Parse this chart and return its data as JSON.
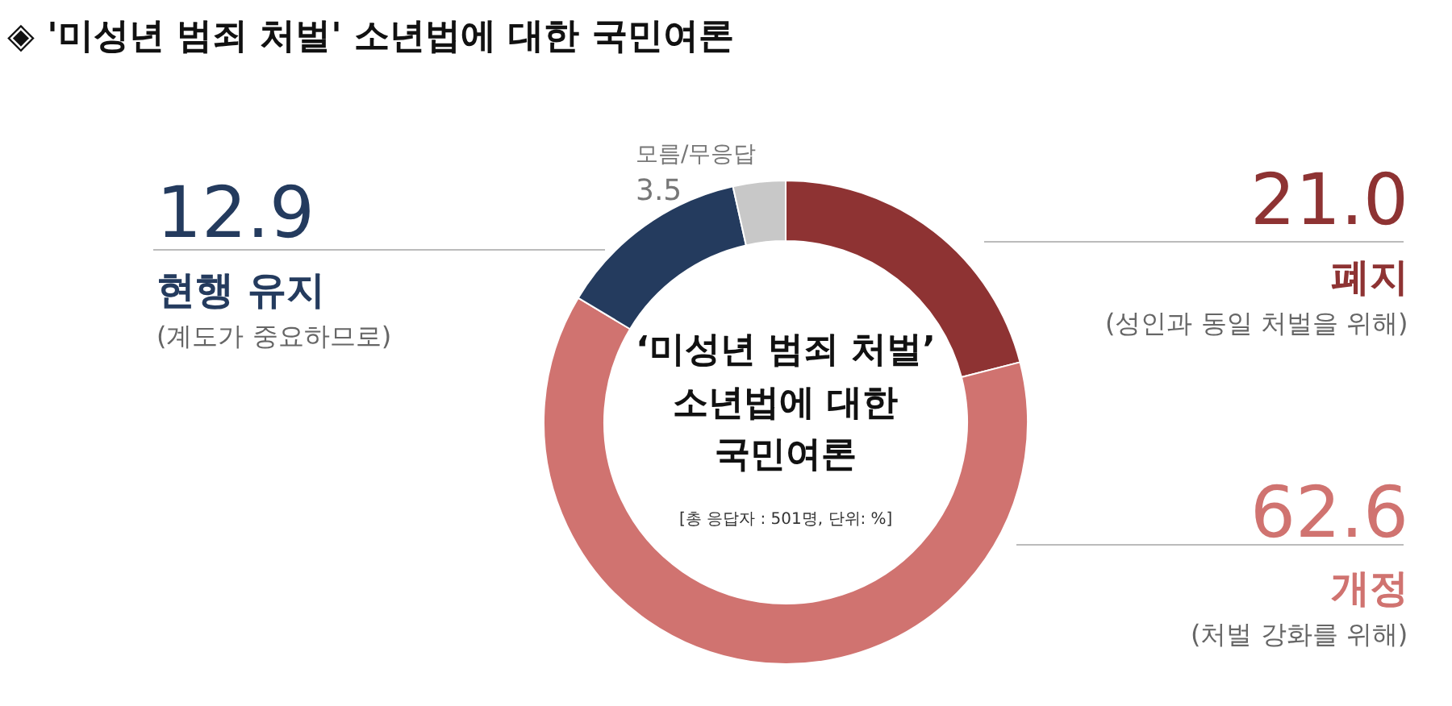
{
  "chart_data": {
    "type": "donut",
    "title": "◈ '미성년 범죄 처벌' 소년법에 대한 국민여론",
    "categories": [
      "폐지",
      "개정",
      "현행 유지",
      "모름/무응답"
    ],
    "values": [
      21.0,
      62.6,
      12.9,
      3.5
    ],
    "value_labels": [
      "21.0",
      "62.6",
      "12.9",
      "3.5"
    ],
    "colors": [
      "#8e3333",
      "#d07370",
      "#243b5e",
      "#c8c8c8"
    ],
    "legend": false,
    "annotations": [
      "(성인과 동일 처벌을 위해)",
      "(처벌 강화를 위해)",
      "(계도가 중요하므로)",
      "‘미성년 범죄 처벌’",
      "소년법에 대한",
      "국민여론",
      "[총 응답자 : 501명, 단위: %]"
    ]
  }
}
